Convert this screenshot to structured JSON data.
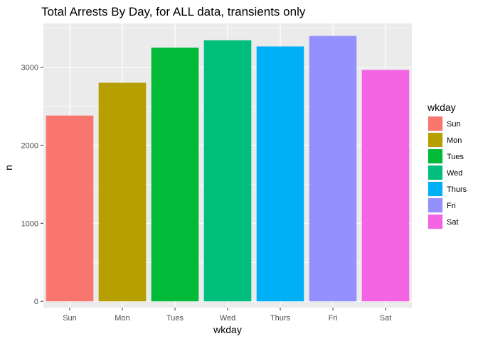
{
  "chart_data": {
    "type": "bar",
    "title": "Total Arrests By Day, for ALL data, transients only",
    "xlabel": "wkday",
    "ylabel": "n",
    "categories": [
      "Sun",
      "Mon",
      "Tues",
      "Wed",
      "Thurs",
      "Fri",
      "Sat"
    ],
    "values": [
      2380,
      2800,
      3250,
      3345,
      3265,
      3400,
      2965
    ],
    "colors": [
      "#F8766D",
      "#B79F00",
      "#00BA38",
      "#00BF7D",
      "#00B0F6",
      "#9590FF",
      "#F564E3"
    ],
    "ylim": [
      -80,
      3560
    ],
    "yticks": [
      0,
      1000,
      2000,
      3000
    ],
    "ytick_labels": [
      "0",
      "1000",
      "2000",
      "3000"
    ],
    "grid": true,
    "panel_background": "#EBEBEB",
    "legend": {
      "title": "wkday",
      "position": "right",
      "entries": [
        "Sun",
        "Mon",
        "Tues",
        "Wed",
        "Thurs",
        "Fri",
        "Sat"
      ]
    }
  }
}
